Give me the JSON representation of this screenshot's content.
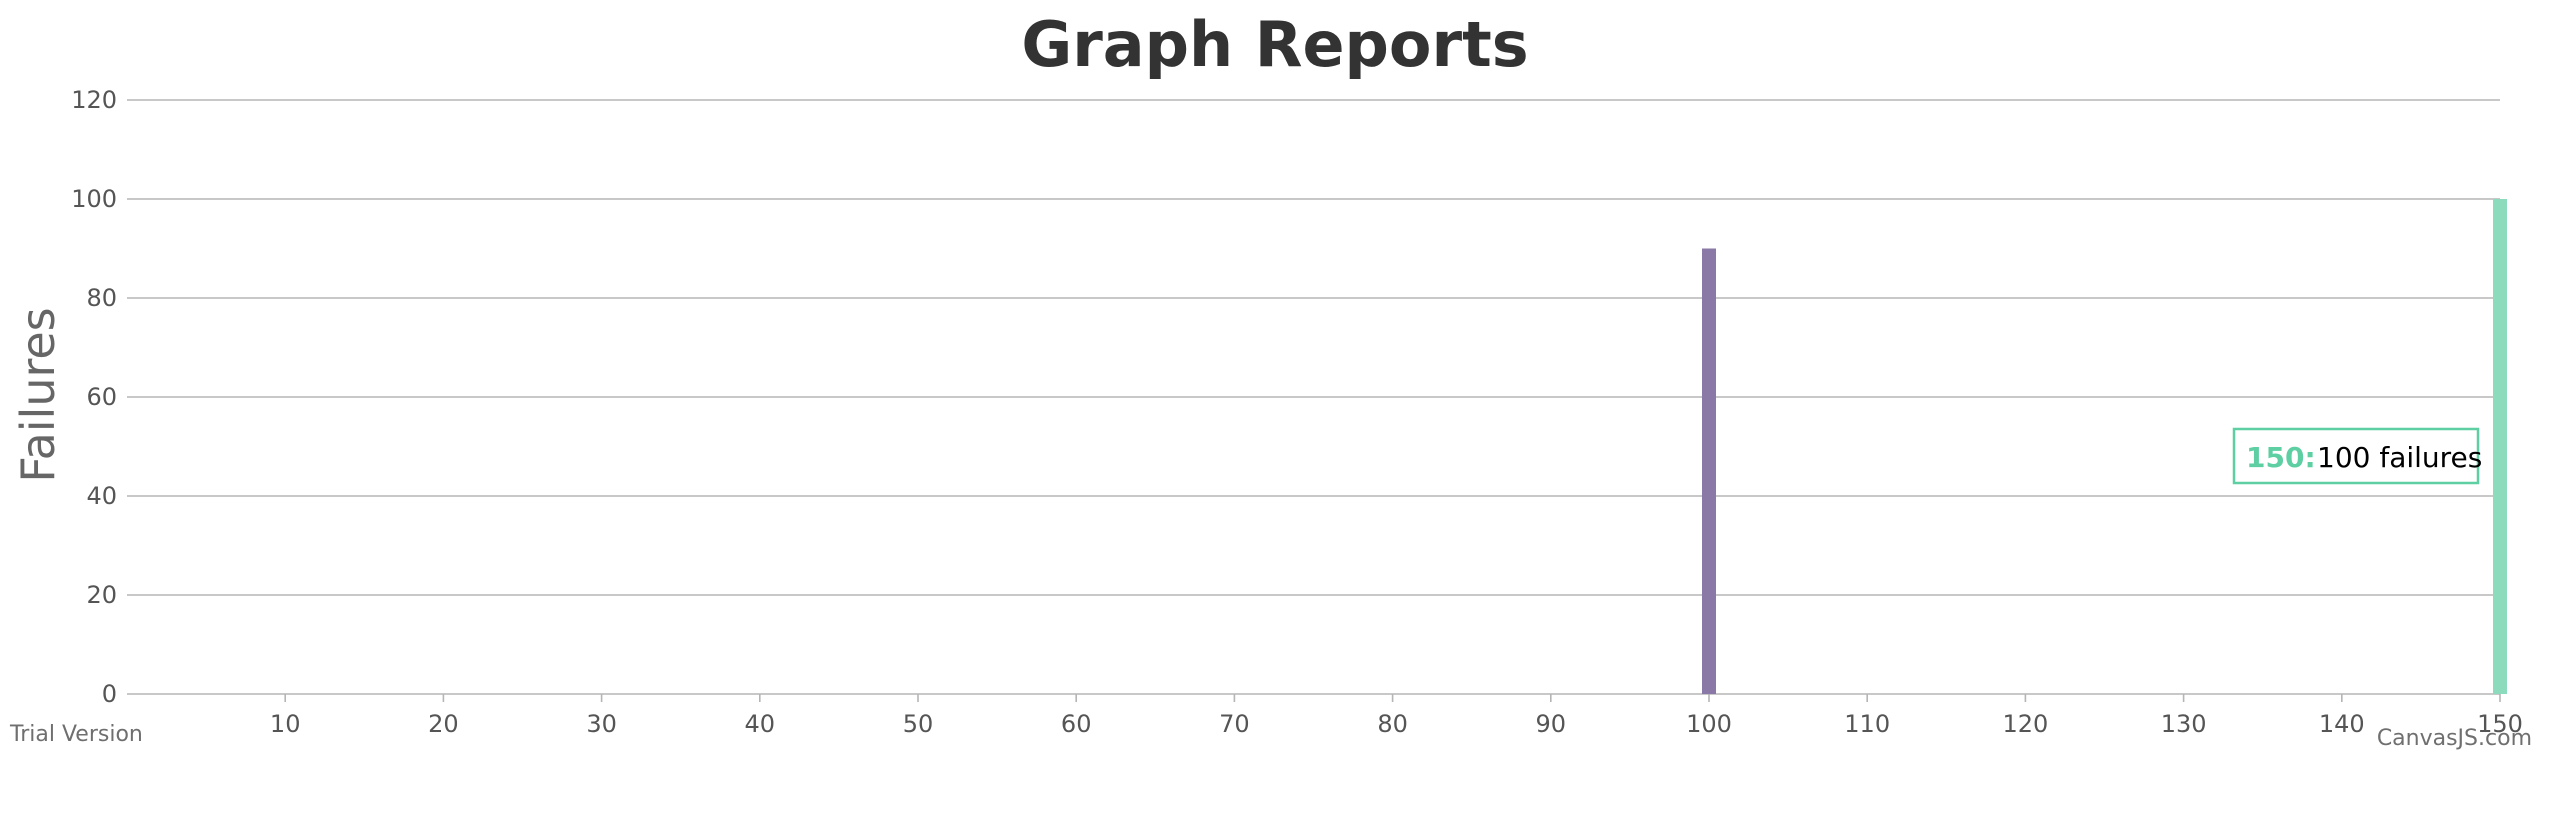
{
  "chart_data": {
    "type": "bar",
    "title": "Graph Reports",
    "xlabel": "",
    "ylabel": "Failures",
    "xlim": [
      0,
      150
    ],
    "ylim": [
      0,
      120
    ],
    "x_ticks": [
      10,
      20,
      30,
      40,
      50,
      60,
      70,
      80,
      90,
      100,
      110,
      120,
      130,
      140,
      150
    ],
    "y_ticks": [
      0,
      20,
      40,
      60,
      80,
      100,
      120
    ],
    "grid": true,
    "points": [
      {
        "x": 100,
        "y": 90,
        "color": "#8a78a6"
      },
      {
        "x": 150,
        "y": 100,
        "color": "#8ddbbd"
      }
    ],
    "tooltip": {
      "key": "150:",
      "value": "100 failures",
      "color": "#5ecfa3"
    }
  },
  "watermarks": {
    "left": "Trial Version",
    "right": "CanvasJS.com"
  }
}
